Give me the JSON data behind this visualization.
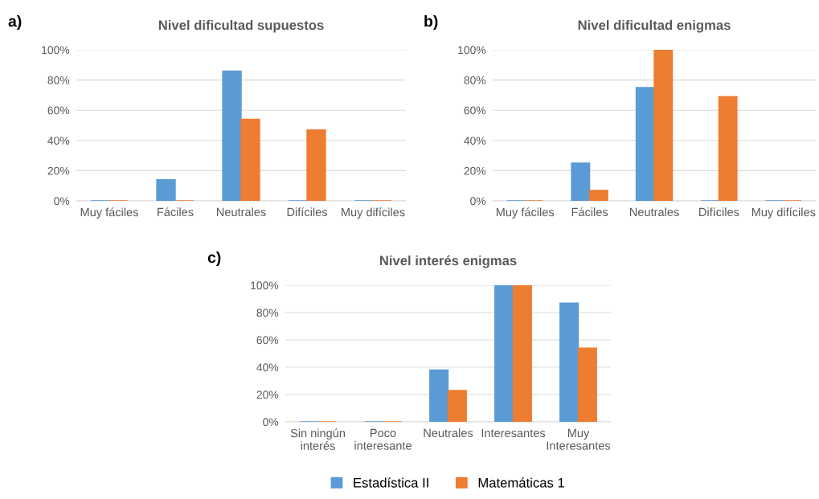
{
  "chart_data": [
    {
      "type": "bar",
      "title": "Nivel dificultad supuestos",
      "annotations": [
        "a)"
      ],
      "categories": [
        "Muy fáciles",
        "Fáciles",
        "Neutrales",
        "Difíciles",
        "Muy difíciles"
      ],
      "series": [
        {
          "color": "#5b9bd5",
          "values": [
            0,
            14,
            86,
            0,
            0
          ]
        },
        {
          "color": "#ed7d31",
          "values": [
            0,
            0,
            54,
            47,
            0
          ]
        }
      ],
      "ylim": [
        0,
        100
      ],
      "yticks": [
        {
          "value": 0,
          "label": "0%"
        },
        {
          "value": 20,
          "label": "20%"
        },
        {
          "value": 40,
          "label": "40%"
        },
        {
          "value": 60,
          "label": "60%"
        },
        {
          "value": 80,
          "label": "80%"
        },
        {
          "value": 100,
          "label": "100%"
        }
      ],
      "grid": "y"
    },
    {
      "type": "bar",
      "title": "Nivel dificultad enigmas",
      "annotations": [
        "b)"
      ],
      "categories": [
        "Muy fáciles",
        "Fáciles",
        "Neutrales",
        "Difíciles",
        "Muy difíciles"
      ],
      "series": [
        {
          "color": "#5b9bd5",
          "values": [
            0,
            25,
            75,
            0,
            0
          ]
        },
        {
          "color": "#ed7d31",
          "values": [
            0,
            7,
            100,
            69,
            0
          ]
        }
      ],
      "ylim": [
        0,
        100
      ],
      "yticks": [
        {
          "value": 0,
          "label": "0%"
        },
        {
          "value": 20,
          "label": "20%"
        },
        {
          "value": 40,
          "label": "40%"
        },
        {
          "value": 60,
          "label": "60%"
        },
        {
          "value": 80,
          "label": "80%"
        },
        {
          "value": 100,
          "label": "100%"
        }
      ],
      "grid": "y"
    },
    {
      "type": "bar",
      "title": "Nivel interés enigmas",
      "annotations": [
        "c)"
      ],
      "categories": [
        "Sin ningún\ninterés",
        "Poco\ninteresante",
        "Neutrales",
        "Interesantes",
        "Muy\nInteresantes"
      ],
      "series": [
        {
          "name": "Estadística II",
          "color": "#5b9bd5",
          "values": [
            0,
            0,
            38,
            100,
            87
          ]
        },
        {
          "name": "Matemáticas 1",
          "color": "#ed7d31",
          "values": [
            0,
            0,
            23,
            100,
            54
          ]
        }
      ],
      "ylim": [
        0,
        100
      ],
      "yticks": [
        {
          "value": 0,
          "label": "0%"
        },
        {
          "value": 20,
          "label": "20%"
        },
        {
          "value": 40,
          "label": "40%"
        },
        {
          "value": 60,
          "label": "60%"
        },
        {
          "value": 80,
          "label": "80%"
        },
        {
          "value": 100,
          "label": "100%"
        }
      ],
      "grid": "y",
      "legend": "bottom"
    }
  ]
}
